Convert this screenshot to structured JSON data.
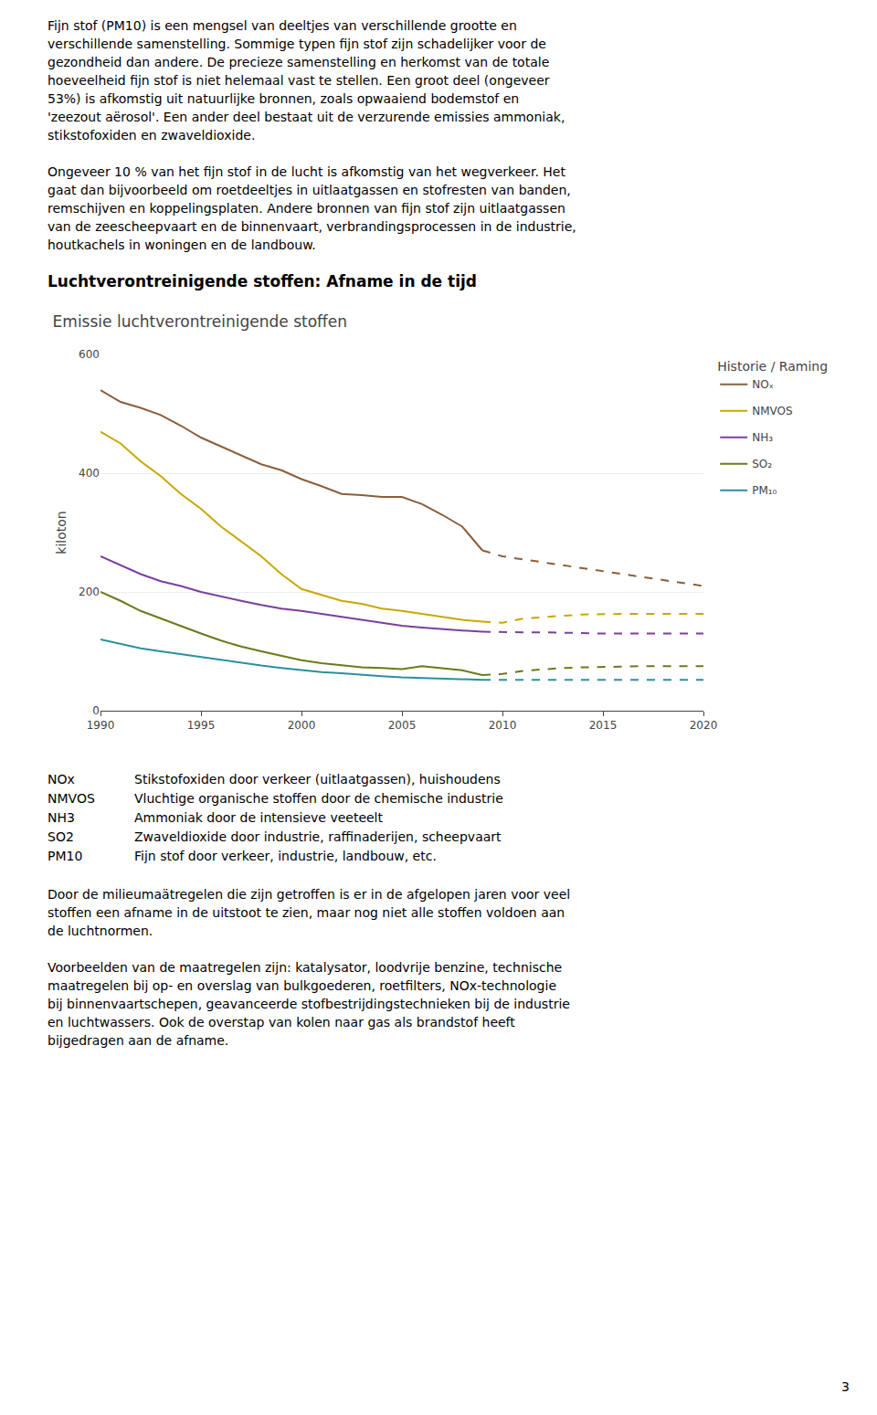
{
  "chart_data": {
    "type": "line",
    "title": "Emissie luchtverontreinigende stoffen",
    "ylabel": "kiloton",
    "legend_title": "Historie / Raming",
    "xlim": [
      1990,
      2020
    ],
    "xticks": [
      1990,
      1995,
      2000,
      2005,
      2010,
      2015,
      2020
    ],
    "ylim": [
      0,
      600
    ],
    "yticks": [
      0,
      200,
      400,
      600
    ],
    "grid": "y",
    "series": [
      {
        "name": "NOₓ",
        "color": "#8B5E3C",
        "line_style": "solid",
        "x": [
          1990,
          1991,
          1992,
          1993,
          1994,
          1995,
          1996,
          1997,
          1998,
          1999,
          2000,
          2001,
          2002,
          2003,
          2004,
          2005,
          2006,
          2007,
          2008,
          2009
        ],
        "values": [
          540,
          520,
          510,
          498,
          480,
          460,
          445,
          430,
          415,
          405,
          390,
          378,
          365,
          363,
          360,
          360,
          348,
          330,
          310,
          270
        ]
      },
      {
        "name": "NOₓ",
        "color": "#8B5E3C",
        "line_style": "dashed",
        "x": [
          2009,
          2010,
          2011,
          2012,
          2013,
          2014,
          2015,
          2016,
          2017,
          2018,
          2019,
          2020
        ],
        "values": [
          270,
          260,
          255,
          250,
          245,
          240,
          235,
          230,
          225,
          220,
          215,
          210
        ]
      },
      {
        "name": "NMVOS",
        "color": "#c8a800",
        "line_style": "solid",
        "x": [
          1990,
          1991,
          1992,
          1993,
          1994,
          1995,
          1996,
          1997,
          1998,
          1999,
          2000,
          2001,
          2002,
          2003,
          2004,
          2005,
          2006,
          2007,
          2008,
          2009
        ],
        "values": [
          470,
          450,
          420,
          395,
          365,
          340,
          310,
          285,
          260,
          230,
          205,
          195,
          185,
          180,
          172,
          168,
          163,
          158,
          153,
          150
        ]
      },
      {
        "name": "NMVOS",
        "color": "#c8a800",
        "line_style": "dashed",
        "x": [
          2009,
          2010,
          2011,
          2012,
          2013,
          2014,
          2015,
          2016,
          2017,
          2018,
          2019,
          2020
        ],
        "values": [
          150,
          148,
          155,
          158,
          160,
          162,
          163,
          163,
          163,
          163,
          163,
          163
        ]
      },
      {
        "name": "NH₃",
        "color": "#7b3fa0",
        "line_style": "solid",
        "x": [
          1990,
          1991,
          1992,
          1993,
          1994,
          1995,
          1996,
          1997,
          1998,
          1999,
          2000,
          2001,
          2002,
          2003,
          2004,
          2005,
          2006,
          2007,
          2008,
          2009
        ],
        "values": [
          260,
          245,
          230,
          218,
          210,
          200,
          192,
          185,
          178,
          172,
          168,
          163,
          158,
          153,
          148,
          143,
          140,
          137,
          135,
          133
        ]
      },
      {
        "name": "NH₃",
        "color": "#7b3fa0",
        "line_style": "dashed",
        "x": [
          2009,
          2010,
          2011,
          2012,
          2013,
          2014,
          2015,
          2016,
          2017,
          2018,
          2019,
          2020
        ],
        "values": [
          133,
          132,
          132,
          132,
          131,
          131,
          130,
          130,
          130,
          130,
          130,
          130
        ]
      },
      {
        "name": "SO₂",
        "color": "#6b7a1a",
        "line_style": "solid",
        "x": [
          1990,
          1991,
          1992,
          1993,
          1994,
          1995,
          1996,
          1997,
          1998,
          1999,
          2000,
          2001,
          2002,
          2003,
          2004,
          2005,
          2006,
          2007,
          2008,
          2009
        ],
        "values": [
          200,
          185,
          168,
          155,
          143,
          130,
          118,
          108,
          100,
          92,
          85,
          80,
          76,
          73,
          72,
          70,
          75,
          72,
          68,
          60
        ]
      },
      {
        "name": "SO₂",
        "color": "#6b7a1a",
        "line_style": "dashed",
        "x": [
          2009,
          2010,
          2011,
          2012,
          2013,
          2014,
          2015,
          2016,
          2017,
          2018,
          2019,
          2020
        ],
        "values": [
          60,
          62,
          67,
          70,
          72,
          73,
          74,
          75,
          75,
          75,
          75,
          75
        ]
      },
      {
        "name": "PM₁₀",
        "color": "#2a8fa0",
        "line_style": "solid",
        "x": [
          1990,
          1991,
          1992,
          1993,
          1994,
          1995,
          1996,
          1997,
          1998,
          1999,
          2000,
          2001,
          2002,
          2003,
          2004,
          2005,
          2006,
          2007,
          2008,
          2009
        ],
        "values": [
          120,
          112,
          105,
          100,
          95,
          90,
          85,
          80,
          76,
          72,
          68,
          65,
          63,
          60,
          58,
          56,
          55,
          54,
          53,
          52
        ]
      },
      {
        "name": "PM₁₀",
        "color": "#2a8fa0",
        "line_style": "dashed",
        "x": [
          2009,
          2010,
          2011,
          2012,
          2013,
          2014,
          2015,
          2016,
          2017,
          2018,
          2019,
          2020
        ],
        "values": [
          52,
          52,
          52,
          52,
          52,
          52,
          52,
          52,
          52,
          52,
          52,
          52
        ]
      }
    ]
  },
  "page_text": {
    "paragraphs_before": [
      [
        "Fijn stof (PM10) is een mengsel van deeltjes van verschillende grootte en",
        "verschillende samenstelling. Sommige typen fijn stof zijn schadelijker voor de",
        "gezondheid dan andere. De precieze samenstelling en herkomst van de totale",
        "hoeveelheid fijn stof is niet helemaal vast te stellen. Een groot deel (ongeveer",
        "53%) is afkomstig uit natuurlijke bronnen, zoals opwaaiend bodemstof en",
        "'zeezout aërosol'. Een ander deel bestaat uit de verzurende emissies ammoniak,",
        "stikstofoxiden en zwaveldioxide."
      ],
      [
        "Ongeveer 10 % van het fijn stof in de lucht is afkomstig van het wegverkeer. Het",
        "gaat dan bijvoorbeeld om roetdeeltjes in uitlaatgassen en stofresten van banden,",
        "remschijven en koppelingsplaten. Andere bronnen van fijn stof zijn uitlaatgassen",
        "van de zeescheepvaart en de binnenvaart, verbrandingsprocessen in de industrie,",
        "houtkachels in woningen en de landbouw."
      ]
    ],
    "heading": "Luchtverontreinigende stoffen: Afname in de tijd",
    "abbreviations": [
      [
        "NOx",
        "Stikstofoxiden door verkeer (uitlaatgassen), huishoudens"
      ],
      [
        "NMVOS",
        "Vluchtige organische stoffen door de chemische industrie"
      ],
      [
        "NH3",
        "Ammoniak door de intensieve veeteelt"
      ],
      [
        "SO2",
        "Zwaveldioxide door industrie, raffinaderijen, scheepvaart"
      ],
      [
        "PM10",
        "Fijn stof door verkeer, industrie, landbouw, etc."
      ]
    ],
    "paragraphs_after": [
      [
        "Door de milieumaätregelen die zijn getroffen is er in de afgelopen jaren voor veel",
        "stoffen een afname in de uitstoot te zien, maar nog niet alle stoffen voldoen aan",
        "de luchtnormen."
      ],
      [
        "Voorbeelden van de maatregelen zijn: katalysator, loodvrije benzine, technische",
        "maatregelen bij op- en overslag van bulkgoederen, roetfilters, NOx-technologie",
        "bij binnenvaartschepen, geavanceerde stofbestrijdingstechnieken bij de industrie",
        "en luchtwassers. Ook de overstap van kolen naar gas als brandstof heeft",
        "bijgedragen aan de afname."
      ]
    ],
    "page_number": "3"
  }
}
